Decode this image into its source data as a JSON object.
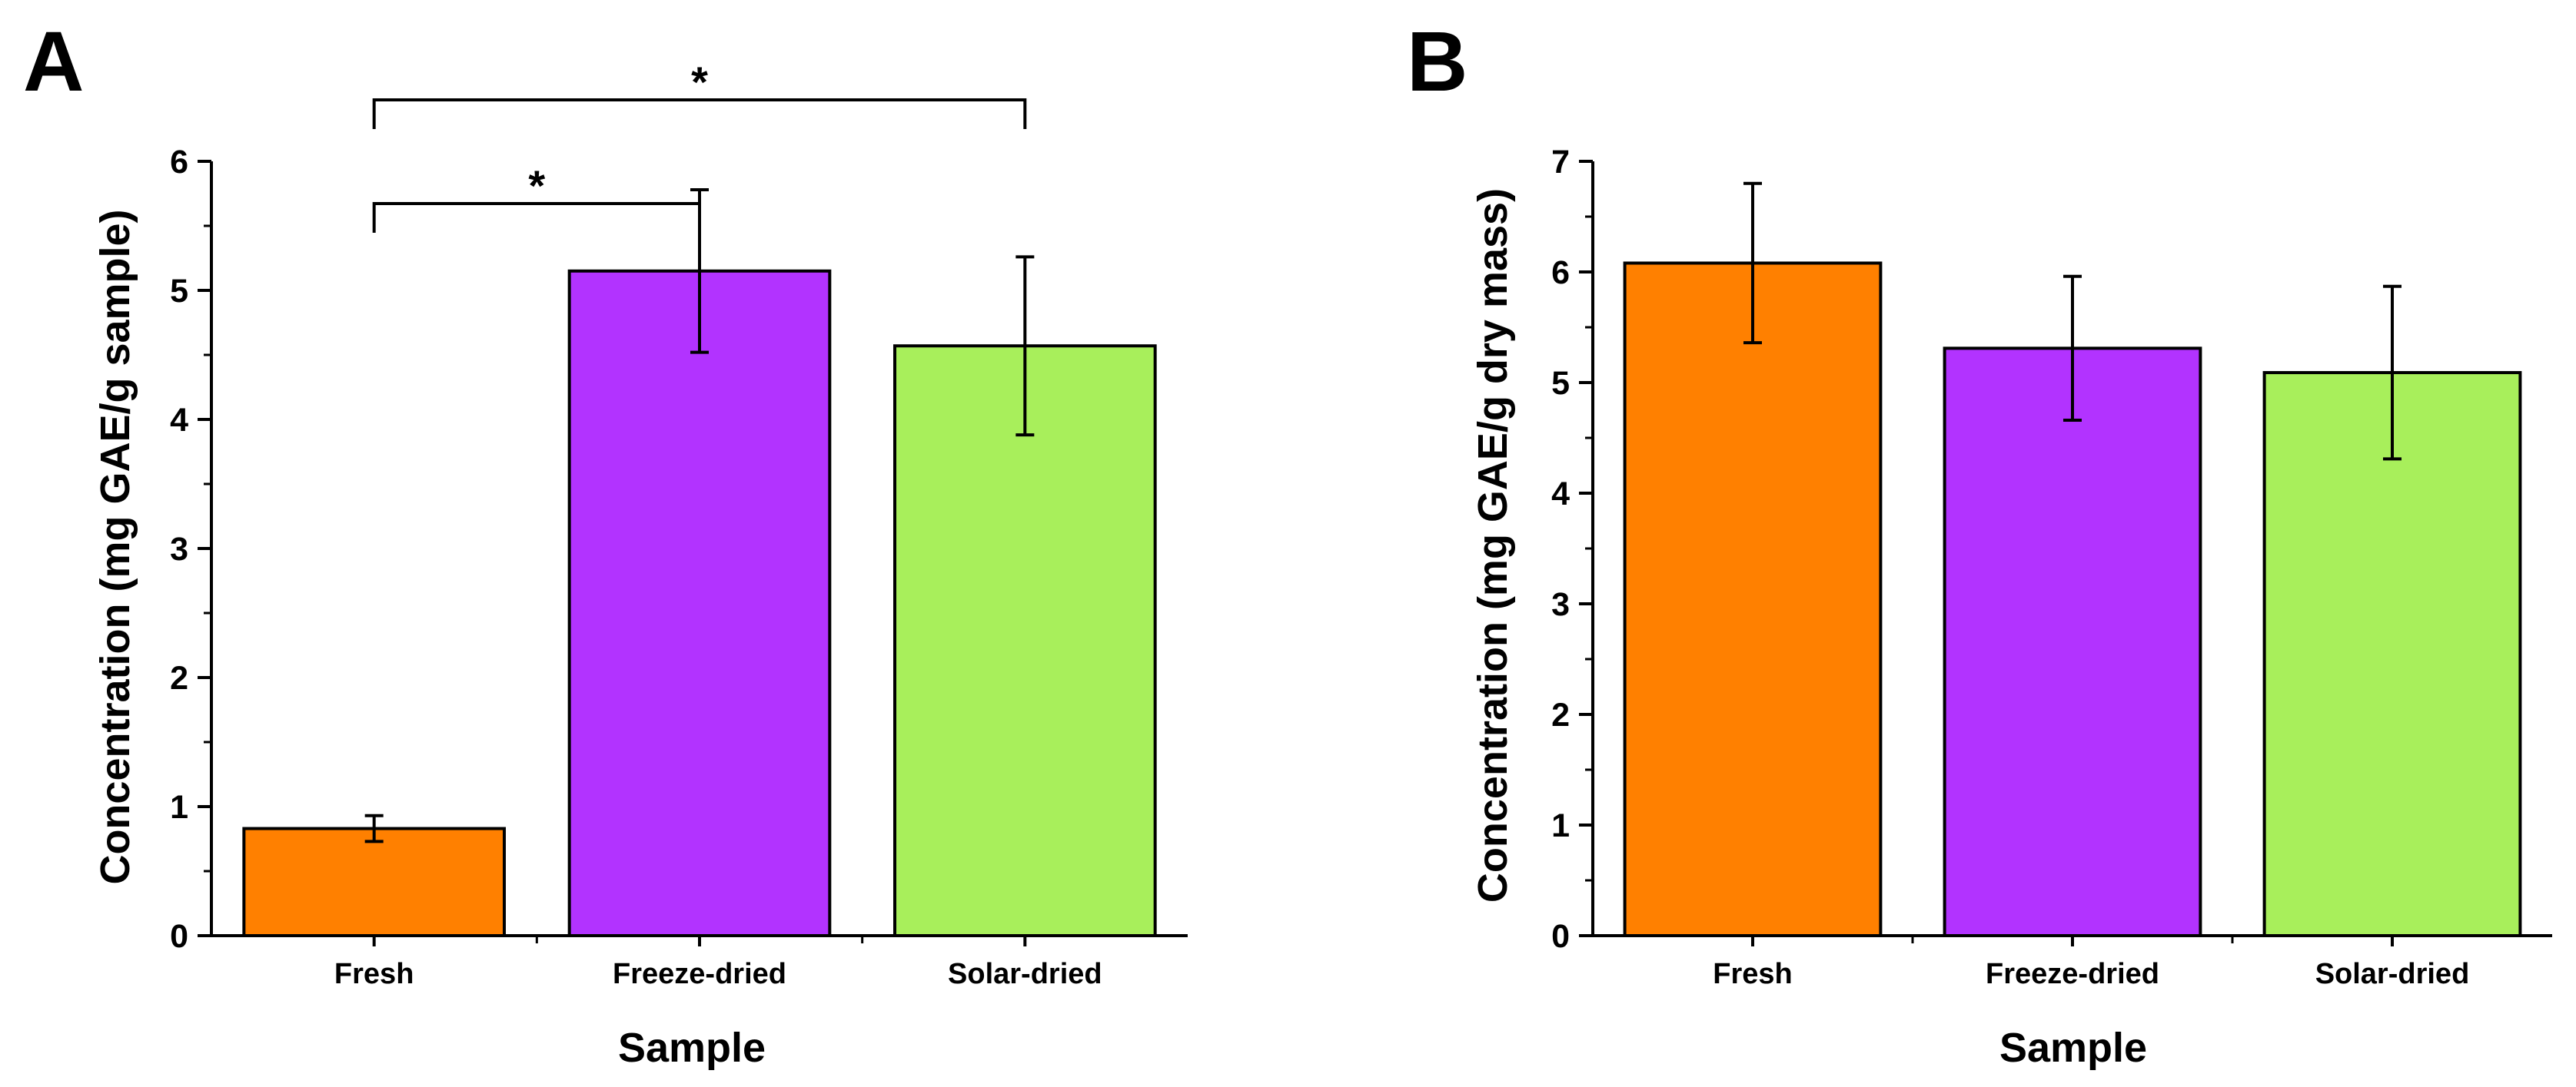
{
  "chart_data": [
    {
      "panel_label": "A",
      "type": "bar",
      "categories": [
        "Fresh",
        "Freeze-dried",
        "Solar-dried"
      ],
      "values": [
        0.83,
        5.15,
        4.57
      ],
      "errors": [
        0.1,
        0.63,
        0.69
      ],
      "colors": [
        "#ff8000",
        "#b233ff",
        "#a8ef5b"
      ],
      "xlabel": "Sample",
      "ylabel": "Concentration (mg GAE/g sample)",
      "ylim": [
        0,
        6
      ],
      "yticks": [
        "0",
        "1",
        "2",
        "3",
        "4",
        "5",
        "6"
      ],
      "grid": false,
      "legend": "none",
      "significance": [
        {
          "from": 0,
          "to": 1,
          "label": "*",
          "level": 1
        },
        {
          "from": 0,
          "to": 2,
          "label": "*",
          "level": 2
        }
      ]
    },
    {
      "panel_label": "B",
      "type": "bar",
      "categories": [
        "Fresh",
        "Freeze-dried",
        "Solar-dried"
      ],
      "values": [
        6.08,
        5.31,
        5.09
      ],
      "errors": [
        0.72,
        0.65,
        0.78
      ],
      "colors": [
        "#ff8000",
        "#b233ff",
        "#a8ef5b"
      ],
      "xlabel": "Sample",
      "ylabel": "Concentration (mg GAE/g dry mass)",
      "ylim": [
        0,
        7
      ],
      "yticks": [
        "0",
        "1",
        "2",
        "3",
        "4",
        "5",
        "6",
        "7"
      ],
      "grid": false,
      "legend": "none",
      "significance": []
    }
  ]
}
